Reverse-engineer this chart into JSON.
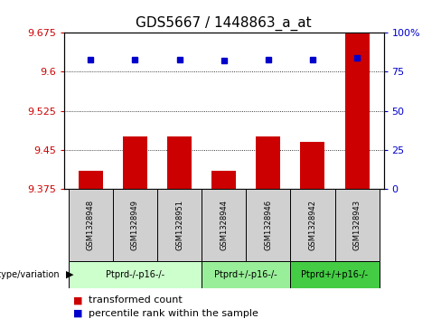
{
  "title": "GDS5667 / 1448863_a_at",
  "samples": [
    "GSM1328948",
    "GSM1328949",
    "GSM1328951",
    "GSM1328944",
    "GSM1328946",
    "GSM1328942",
    "GSM1328943"
  ],
  "transformed_count": [
    9.41,
    9.475,
    9.475,
    9.41,
    9.475,
    9.465,
    9.675
  ],
  "percentile_rank": [
    83,
    83,
    83,
    82,
    83,
    83,
    84
  ],
  "ylim_left": [
    9.375,
    9.675
  ],
  "ylim_right": [
    0,
    100
  ],
  "yticks_left": [
    9.375,
    9.45,
    9.525,
    9.6,
    9.675
  ],
  "yticks_right": [
    0,
    25,
    50,
    75,
    100
  ],
  "groups": [
    {
      "label": "Ptprd-/-p16-/-",
      "indices": [
        0,
        1,
        2
      ],
      "color": "#ccffcc"
    },
    {
      "label": "Ptprd+/-p16-/-",
      "indices": [
        3,
        4
      ],
      "color": "#99ee99"
    },
    {
      "label": "Ptprd+/+p16-/-",
      "indices": [
        5,
        6
      ],
      "color": "#44cc44"
    }
  ],
  "bar_color": "#cc0000",
  "dot_color": "#0000cc",
  "bar_width": 0.55,
  "background_color": "#ffffff",
  "plot_bg_color": "#ffffff",
  "sample_box_color": "#d0d0d0",
  "title_fontsize": 11,
  "tick_fontsize": 8,
  "legend_fontsize": 8
}
